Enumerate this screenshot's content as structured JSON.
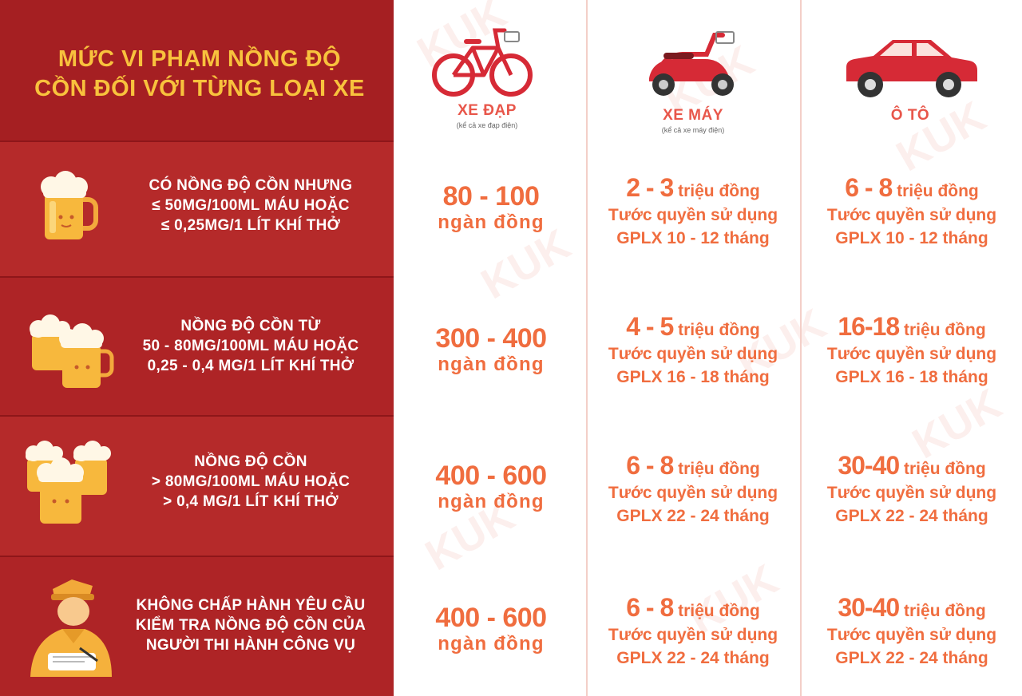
{
  "title": {
    "line1": "MỨC VI PHẠM NỒNG ĐỘ",
    "line2": "CỒN ĐỐI VỚI TỪNG LOẠI XE"
  },
  "vehicles": [
    {
      "name": "XE ĐẠP",
      "note": "(kể cả xe đạp điện)",
      "icon": "bicycle-icon"
    },
    {
      "name": "XE MÁY",
      "note": "(kể cả xe máy điện)",
      "icon": "scooter-icon"
    },
    {
      "name": "Ô TÔ",
      "note": "",
      "icon": "car-icon"
    }
  ],
  "rows": [
    {
      "condition": [
        "CÓ NỒNG ĐỘ CỒN NHƯNG",
        "≤ 50MG/100ML MÁU HOẶC",
        "≤ 0,25MG/1 LÍT KHÍ THỞ"
      ],
      "icon": "beer-mug-icon",
      "bicycle": {
        "amount": "80 - 100",
        "unit": "ngàn đồng"
      },
      "motorbike": {
        "amount": "2 - 3",
        "unit": "triệu đồng",
        "line2": "Tước quyền sử dụng",
        "line3": "GPLX 10 - 12 tháng"
      },
      "car": {
        "amount": "6 - 8",
        "unit": "triệu đồng",
        "line2": "Tước quyền sử dụng",
        "line3": "GPLX 10 - 12 tháng"
      }
    },
    {
      "condition": [
        "NỒNG ĐỘ CỒN TỪ",
        "50 - 80MG/100ML MÁU HOẶC",
        "0,25 - 0,4 MG/1 LÍT KHÍ THỞ"
      ],
      "icon": "two-beer-mugs-icon",
      "bicycle": {
        "amount": "300 - 400",
        "unit": "ngàn đồng"
      },
      "motorbike": {
        "amount": "4 - 5",
        "unit": "triệu đồng",
        "line2": "Tước quyền sử dụng",
        "line3": "GPLX 16 - 18 tháng"
      },
      "car": {
        "amount": "16-18",
        "unit": "triệu đồng",
        "line2": "Tước quyền sử dụng",
        "line3": "GPLX 16 - 18 tháng"
      }
    },
    {
      "condition": [
        "NỒNG ĐỘ CỒN",
        "> 80MG/100ML MÁU HOẶC",
        "> 0,4 MG/1 LÍT KHÍ THỞ"
      ],
      "icon": "three-beer-mugs-icon",
      "bicycle": {
        "amount": "400 - 600",
        "unit": "ngàn đồng"
      },
      "motorbike": {
        "amount": "6 - 8",
        "unit": "triệu đồng",
        "line2": "Tước quyền sử dụng",
        "line3": "GPLX 22 - 24 tháng"
      },
      "car": {
        "amount": "30-40",
        "unit": "triệu đồng",
        "line2": "Tước quyền sử dụng",
        "line3": "GPLX 22 - 24 tháng"
      }
    },
    {
      "condition": [
        "KHÔNG CHẤP HÀNH YÊU CẦU",
        "KIỂM TRA NỒNG ĐỘ CỒN CỦA",
        "NGƯỜI THI HÀNH CÔNG VỤ"
      ],
      "icon": "traffic-officer-icon",
      "bicycle": {
        "amount": "400 - 600",
        "unit": "ngàn đồng"
      },
      "motorbike": {
        "amount": "6 - 8",
        "unit": "triệu đồng",
        "line2": "Tước quyền sử dụng",
        "line3": "GPLX 22 - 24 tháng"
      },
      "car": {
        "amount": "30-40",
        "unit": "triệu đồng",
        "line2": "Tước quyền sử dụng",
        "line3": "GPLX 22 - 24 tháng"
      }
    }
  ],
  "watermark": "KUK",
  "colors": {
    "red_panel": "#a51f22",
    "title_yellow": "#f8c23d",
    "fine_orange": "#f06d3f",
    "vehicle_red": "#e8564a"
  }
}
